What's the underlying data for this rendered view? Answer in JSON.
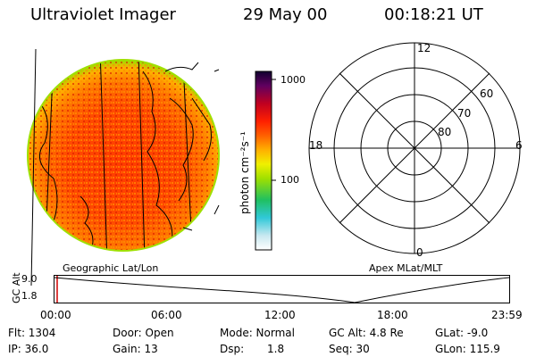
{
  "header": {
    "instrument": "Ultraviolet Imager",
    "date": "29 May 00",
    "time": "00:18:21 UT"
  },
  "colorbar": {
    "label": "photon cm⁻²s⁻¹",
    "ticks": [
      "1000",
      "100"
    ]
  },
  "polar_plot": {
    "mlt_labels": {
      "top": "12",
      "left": "18",
      "right": "6",
      "bottom": "0"
    },
    "lat_labels": [
      "60",
      "70",
      "80"
    ]
  },
  "panel_labels": {
    "geographic": "Geographic Lat/Lon",
    "apex": "Apex MLat/MLT"
  },
  "altitude_plot": {
    "ylabel": "GC Alt",
    "yticks": [
      "9.0",
      "1.8"
    ],
    "xticks": [
      "00:00",
      "06:00",
      "12:00",
      "18:00",
      "23:59"
    ]
  },
  "info": {
    "flt": "Flt: 1304",
    "ip": "IP: 36.0",
    "door": "Door: Open",
    "gain": "Gain: 13",
    "mode": "Mode: Normal",
    "dsp_label": "Dsp:",
    "dsp_value": "1.8",
    "gcalt": "GC Alt: 4.8 Re",
    "seq": "Seq: 30",
    "glat": "GLat:  -9.0",
    "glon": "GLon: 115.9"
  }
}
